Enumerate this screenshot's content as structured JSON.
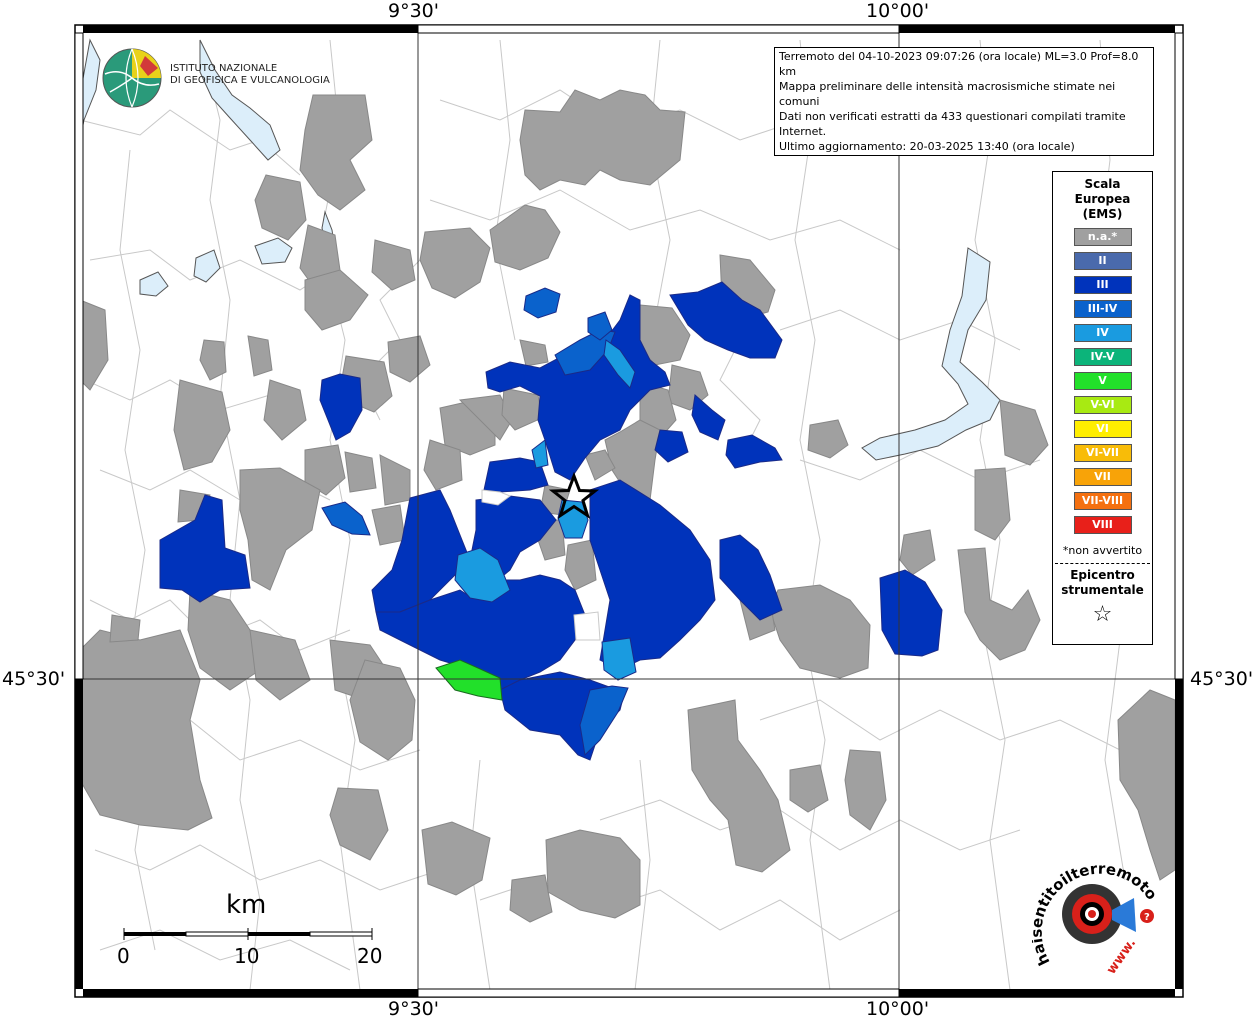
{
  "coords": {
    "top_left": "9°30'",
    "top_right": "10°00'",
    "bottom_left": "9°30'",
    "bottom_right": "10°00'",
    "left": "45°30'",
    "right": "45°30'"
  },
  "institute": {
    "line1": "ISTITUTO NAZIONALE",
    "line2": "DI GEOFISICA E VULCANOLOGIA"
  },
  "info": {
    "line1": "Terremoto del 04-10-2023 09:07:26 (ora locale) ML=3.0 Prof=8.0 km",
    "line2": "Mappa preliminare delle intensità macrosismiche stimate nei comuni",
    "line3": "Dati non verificati estratti da 433 questionari compilati tramite Internet.",
    "line4": "Ultimo aggiornamento: 20-03-2025 13:40 (ora locale)"
  },
  "legend": {
    "title_line1": "Scala",
    "title_line2": "Europea",
    "title_line3": "(EMS)",
    "items": [
      {
        "label": "n.a.*",
        "color": "#a0a0a0"
      },
      {
        "label": "II",
        "color": "#4a6aac"
      },
      {
        "label": "III",
        "color": "#0033bb"
      },
      {
        "label": "III-IV",
        "color": "#0a62cc"
      },
      {
        "label": "IV",
        "color": "#1a9be0"
      },
      {
        "label": "IV-V",
        "color": "#0cb47a"
      },
      {
        "label": "V",
        "color": "#22e02a"
      },
      {
        "label": "V-VI",
        "color": "#a8ea12"
      },
      {
        "label": "VI",
        "color": "#ffee00"
      },
      {
        "label": "VI-VII",
        "color": "#f8bc08"
      },
      {
        "label": "VII",
        "color": "#f8a308"
      },
      {
        "label": "VII-VIII",
        "color": "#f47010"
      },
      {
        "label": "VIII",
        "color": "#e8201a"
      }
    ],
    "note": "*non avvertito",
    "epicenter_line1": "Epicentro",
    "epicenter_line2": "strumentale",
    "star": "☆"
  },
  "scale_bar": {
    "unit": "km",
    "ticks": [
      "0",
      "10",
      "20"
    ]
  },
  "site_logo": {
    "text": "haisentitoilterremoto.it",
    "url": "www.",
    "badge": "?"
  },
  "colors": {
    "gray": "#a0a0a0",
    "blue_iii": "#0033bb",
    "blue_iiiiv": "#0a62cc",
    "blue_iv": "#1a9be0",
    "green_v": "#22e02a",
    "water": "#dceefa"
  },
  "icons": {
    "epicenter": "star-icon",
    "logo": "globe-icon"
  }
}
